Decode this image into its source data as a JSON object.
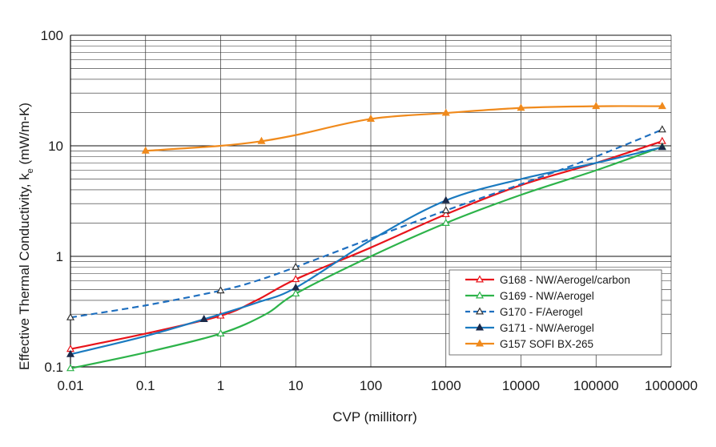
{
  "chart_data": {
    "type": "line",
    "title": "",
    "xlabel": "CVP (millitorr)",
    "ylabel_main": "Effective Thermal Conductivity, k",
    "ylabel_sub": "e",
    "ylabel_unit": " (mW/m-K)",
    "x_scale": "log",
    "y_scale": "log",
    "xlim": [
      0.01,
      1000000
    ],
    "ylim": [
      0.1,
      100
    ],
    "x_ticks": [
      0.01,
      0.1,
      1,
      10,
      100,
      1000,
      10000,
      100000,
      1000000
    ],
    "x_tick_labels": [
      "0.01",
      "0.1",
      "1",
      "10",
      "100",
      "1000",
      "10000",
      "100000",
      "1000000"
    ],
    "y_ticks": [
      0.1,
      1,
      10,
      100
    ],
    "y_tick_labels": [
      "0.1",
      "1",
      "10",
      "100"
    ],
    "grid": true,
    "legend_position": "bottom-right",
    "series": [
      {
        "name": "G168 - NW/Aerogel/carbon",
        "color": "#e8141b",
        "dash": "solid",
        "marker": "triangle-open",
        "x": [
          0.01,
          0.1,
          1,
          3,
          10,
          100,
          1000,
          10000,
          100000,
          760000
        ],
        "y": [
          0.145,
          0.2,
          0.29,
          0.4,
          0.62,
          1.2,
          2.4,
          4.4,
          7.0,
          11.0
        ],
        "marker_x": [
          0.01,
          1,
          10,
          1000,
          760000
        ]
      },
      {
        "name": "G169 - NW/Aerogel",
        "color": "#2db34a",
        "dash": "solid",
        "marker": "triangle-open",
        "x": [
          0.01,
          0.1,
          1,
          4,
          10,
          100,
          1000,
          10000,
          100000,
          760000
        ],
        "y": [
          0.097,
          0.135,
          0.2,
          0.3,
          0.46,
          1.0,
          2.0,
          3.6,
          6.0,
          9.8
        ],
        "marker_x": [
          0.01,
          1,
          10,
          1000,
          760000
        ]
      },
      {
        "name": "G170 - F/Aerogel",
        "color": "#1f6fbf",
        "dash": "dashed",
        "marker": "triangle-open-dark",
        "x": [
          0.01,
          0.1,
          1,
          3,
          10,
          100,
          1000,
          10000,
          100000,
          760000
        ],
        "y": [
          0.28,
          0.36,
          0.49,
          0.6,
          0.8,
          1.45,
          2.6,
          4.5,
          8.0,
          14.0
        ],
        "marker_x": [
          0.01,
          1,
          10,
          1000,
          760000
        ]
      },
      {
        "name": "G171 - NW/Aerogel",
        "color": "#1a7ac0",
        "dash": "solid",
        "marker": "triangle-filled-navy",
        "x": [
          0.01,
          0.1,
          0.6,
          3,
          10,
          100,
          1000,
          10000,
          100000,
          760000
        ],
        "y": [
          0.13,
          0.19,
          0.27,
          0.38,
          0.52,
          1.4,
          3.2,
          5.0,
          7.0,
          9.7
        ],
        "marker_x": [
          0.01,
          0.6,
          10,
          1000,
          760000
        ]
      },
      {
        "name": "G157 SOFI BX-265",
        "color": "#f08a1c",
        "dash": "solid",
        "marker": "triangle-filled",
        "x": [
          0.1,
          1,
          3.5,
          10,
          100,
          1000,
          10000,
          100000,
          760000
        ],
        "y": [
          9.0,
          10.0,
          11.0,
          12.5,
          17.5,
          19.8,
          22.0,
          22.8,
          22.8
        ],
        "marker_x": [
          0.1,
          3.5,
          100,
          1000,
          10000,
          100000,
          760000
        ]
      }
    ]
  }
}
